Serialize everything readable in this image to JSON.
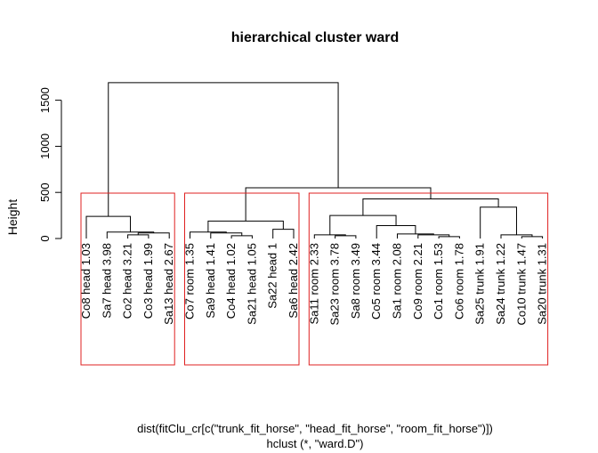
{
  "chart_data": {
    "type": "dendrogram",
    "title": "hierarchical cluster ward",
    "ylabel": "Height",
    "xlabel_line1": "dist(fitClu_cr[c(\"trunk_fit_horse\", \"head_fit_horse\", \"room_fit_horse\")])",
    "xlabel_line2": "hclust (*, \"ward.D\")",
    "ylim": [
      0,
      1700
    ],
    "yticks": [
      0,
      500,
      1000,
      1500
    ],
    "leaves": [
      "Co8 head 1.03",
      "Sa7 head 3.98",
      "Co2 head 3.21",
      "Co3 head 1.99",
      "Sa13 head 2.67",
      "Co7 room 1.35",
      "Sa9 head 1.41",
      "Co4 head 1.02",
      "Sa21 head 1.05",
      "Sa22 head 1",
      "Sa6 head 2.42",
      "Sa11 room 2.33",
      "Sa23 room 3.78",
      "Sa8 room 3.49",
      "Co5 room 3.44",
      "Sa1 room 2.08",
      "Co9 room 2.21",
      "Co1 room 1.53",
      "Co6 room 1.78",
      "Sa25 trunk 1.91",
      "Sa24 trunk 1.22",
      "Co10 trunk 1.47",
      "Sa20 trunk 1.31"
    ],
    "merges": [
      [
        -3,
        -4,
        40
      ],
      [
        -5,
        1,
        60
      ],
      [
        -2,
        2,
        70
      ],
      [
        -1,
        3,
        240
      ],
      [
        -8,
        -9,
        30
      ],
      [
        -7,
        5,
        60
      ],
      [
        -6,
        6,
        70
      ],
      [
        -10,
        -11,
        100
      ],
      [
        7,
        8,
        190
      ],
      [
        -13,
        -14,
        30
      ],
      [
        -12,
        10,
        40
      ],
      [
        -18,
        -19,
        20
      ],
      [
        -17,
        12,
        40
      ],
      [
        -16,
        13,
        50
      ],
      [
        -15,
        14,
        140
      ],
      [
        11,
        15,
        250
      ],
      [
        -22,
        -23,
        20
      ],
      [
        -21,
        17,
        40
      ],
      [
        -20,
        18,
        340
      ],
      [
        16,
        19,
        430
      ],
      [
        9,
        20,
        550
      ],
      [
        4,
        21,
        1690
      ]
    ],
    "rect_groups": [
      [
        1,
        5
      ],
      [
        6,
        11
      ],
      [
        12,
        23
      ]
    ],
    "rect_color": "#DF2020",
    "line_color": "#000000"
  }
}
